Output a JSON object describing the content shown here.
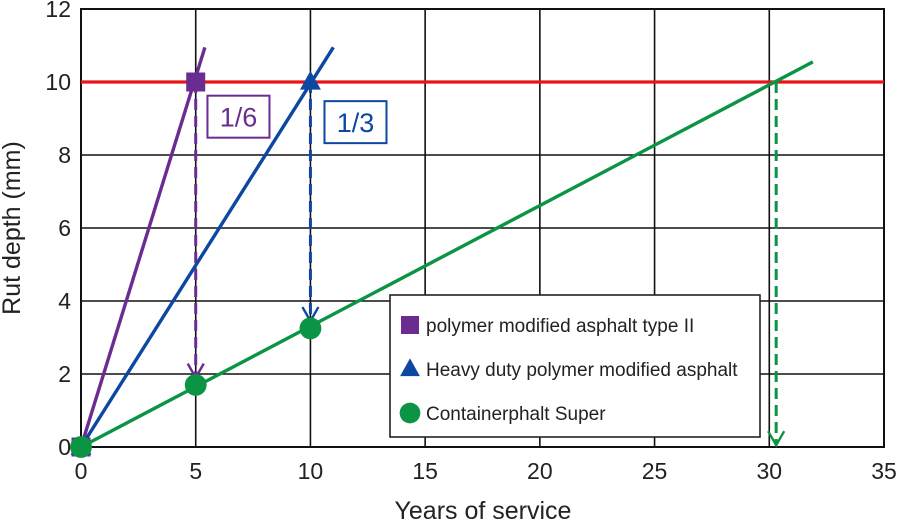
{
  "chart_data": {
    "type": "line",
    "title": "",
    "xlabel": "Years of service",
    "ylabel": "Rut depth (mm)",
    "xlim": [
      0,
      35
    ],
    "ylim": [
      0,
      12
    ],
    "xticks": [
      0,
      5,
      10,
      15,
      20,
      25,
      30,
      35
    ],
    "yticks": [
      0,
      2,
      4,
      6,
      8,
      10,
      12
    ],
    "grid": true,
    "legend_position": "bottom-right",
    "threshold_line": {
      "y": 10,
      "color": "#e8141b"
    },
    "series": [
      {
        "name": "polymer modified asphalt type II",
        "marker": "square",
        "color": "#6a2c91",
        "line": {
          "x": [
            0,
            5.4
          ],
          "y": [
            0,
            10.95
          ]
        },
        "points": [
          {
            "x": 0,
            "y": 0
          },
          {
            "x": 5,
            "y": 10
          }
        ]
      },
      {
        "name": "Heavy duty polymer modified asphalt",
        "marker": "triangle",
        "color": "#0c47a1",
        "line": {
          "x": [
            0,
            11
          ],
          "y": [
            0,
            10.95
          ]
        },
        "points": [
          {
            "x": 0,
            "y": 0
          },
          {
            "x": 10,
            "y": 10
          }
        ]
      },
      {
        "name": "Containerphalt Super",
        "marker": "circle",
        "color": "#0b9444",
        "line": {
          "x": [
            0,
            31.9
          ],
          "y": [
            0,
            10.55
          ]
        },
        "points": [
          {
            "x": 0,
            "y": 0
          },
          {
            "x": 5,
            "y": 1.7
          },
          {
            "x": 10,
            "y": 3.25
          }
        ]
      }
    ],
    "annotations": [
      {
        "text": "1/6",
        "color": "#6a2c91",
        "x": 5.6,
        "y": 9.05
      },
      {
        "text": "1/3",
        "color": "#0c47a1",
        "x": 10.7,
        "y": 8.9
      }
    ],
    "drop_arrows": [
      {
        "color": "#6a2c91",
        "x": 5,
        "from_y": 10,
        "to_y": 1.9
      },
      {
        "color": "#0c47a1",
        "x": 10,
        "from_y": 10,
        "to_y": 3.45
      },
      {
        "color": "#0b9444",
        "x": 30.3,
        "from_y": 10,
        "to_y": 0.05
      }
    ]
  }
}
